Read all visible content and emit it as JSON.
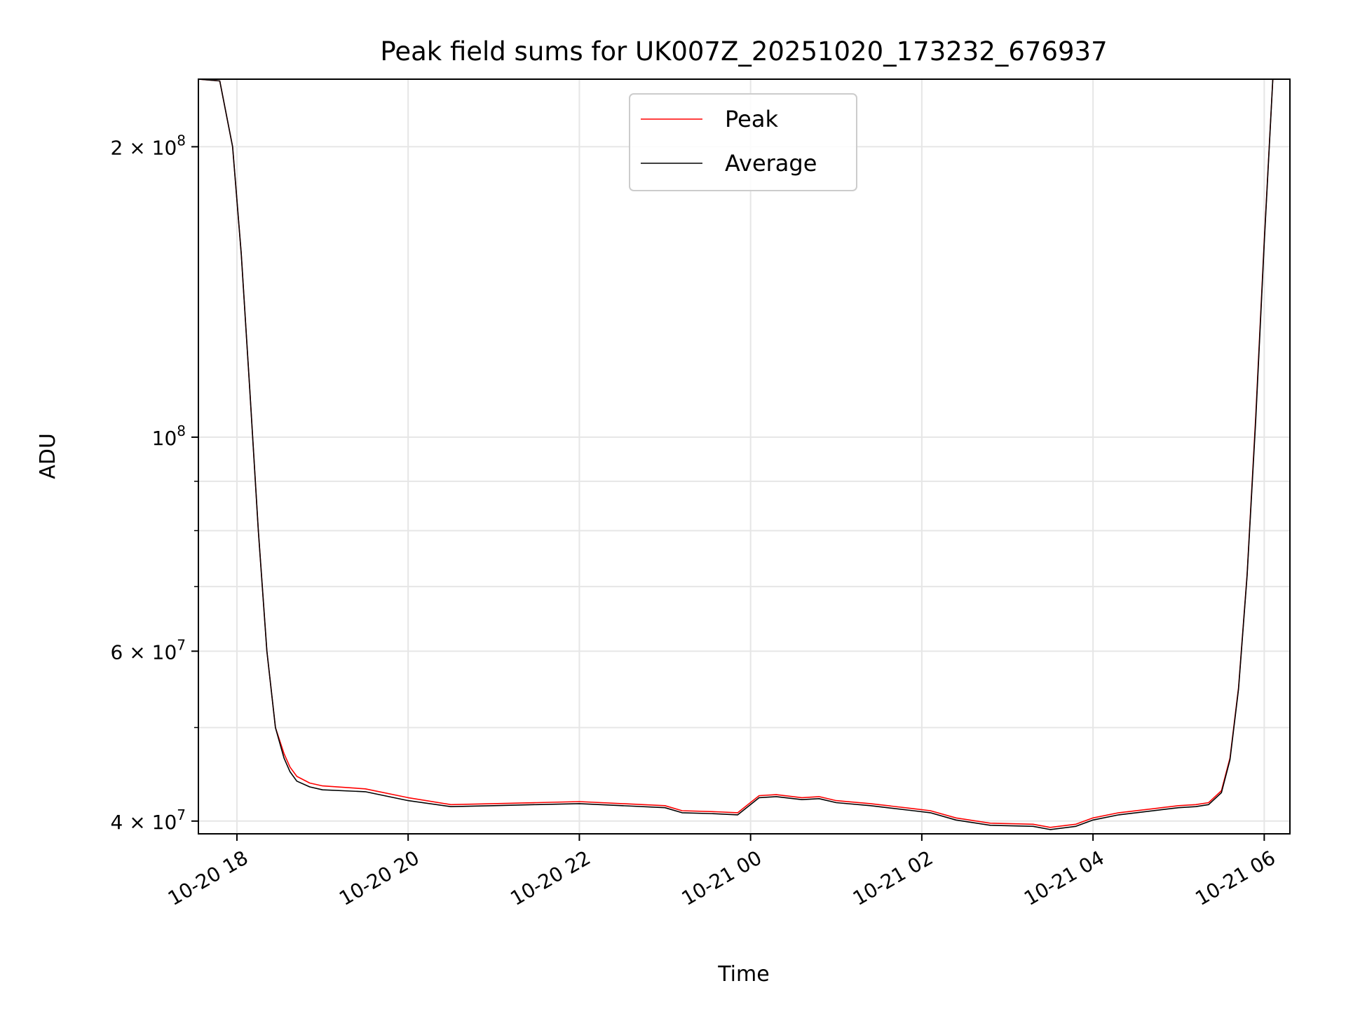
{
  "chart_data": {
    "type": "line",
    "title": "Peak field sums for UK007Z_20251020_173232_676937",
    "xlabel": "Time",
    "ylabel": "ADU",
    "yscale": "log",
    "grid": true,
    "legend_position": "upper-center",
    "xlim": [
      17.55,
      30.3
    ],
    "ylim": [
      38800000,
      235000000
    ],
    "x_ticks": [
      {
        "value": 18,
        "label": "10-20 18"
      },
      {
        "value": 20,
        "label": "10-20 20"
      },
      {
        "value": 22,
        "label": "10-20 22"
      },
      {
        "value": 24,
        "label": "10-21 00"
      },
      {
        "value": 26,
        "label": "10-21 02"
      },
      {
        "value": 28,
        "label": "10-21 04"
      },
      {
        "value": 30,
        "label": "10-21 06"
      }
    ],
    "y_major_ticks": [
      {
        "value": 40000000,
        "base": "4 × 10",
        "exp": "7"
      },
      {
        "value": 60000000,
        "base": "6 × 10",
        "exp": "7"
      },
      {
        "value": 100000000,
        "base": "10",
        "exp": "8"
      },
      {
        "value": 200000000,
        "base": "2 × 10",
        "exp": "8"
      }
    ],
    "y_minor_ticks": [
      50000000,
      70000000,
      80000000,
      90000000
    ],
    "series": [
      {
        "name": "Peak",
        "color": "#ff0000",
        "x": [
          17.55,
          17.8,
          17.95,
          18.05,
          18.15,
          18.25,
          18.35,
          18.45,
          18.55,
          18.62,
          18.7,
          18.85,
          19.0,
          19.5,
          20.0,
          20.5,
          21.0,
          21.5,
          22.0,
          22.5,
          23.0,
          23.2,
          23.6,
          23.85,
          24.1,
          24.3,
          24.6,
          24.8,
          25.0,
          25.4,
          25.9,
          26.1,
          26.4,
          26.8,
          27.3,
          27.5,
          27.8,
          28.0,
          28.3,
          28.8,
          29.0,
          29.2,
          29.35,
          29.5,
          29.6,
          29.7,
          29.8,
          29.9,
          30.0,
          30.1
        ],
        "values": [
          235000000,
          234000000,
          200000000,
          155000000,
          112000000,
          80000000,
          60000000,
          50000000,
          47000000,
          45500000,
          44500000,
          43800000,
          43500000,
          43200000,
          42300000,
          41600000,
          41700000,
          41800000,
          41900000,
          41700000,
          41500000,
          41000000,
          40900000,
          40800000,
          42500000,
          42600000,
          42300000,
          42400000,
          42000000,
          41700000,
          41200000,
          41000000,
          40300000,
          39800000,
          39700000,
          39400000,
          39700000,
          40300000,
          40800000,
          41300000,
          41500000,
          41600000,
          41800000,
          43000000,
          46500000,
          55000000,
          72000000,
          105000000,
          160000000,
          235000000
        ]
      },
      {
        "name": "Average",
        "color": "#000000",
        "x": [
          17.55,
          17.8,
          17.95,
          18.05,
          18.15,
          18.25,
          18.35,
          18.45,
          18.55,
          18.62,
          18.7,
          18.85,
          19.0,
          19.5,
          20.0,
          20.5,
          21.0,
          21.5,
          22.0,
          22.5,
          23.0,
          23.2,
          23.6,
          23.85,
          24.1,
          24.3,
          24.6,
          24.8,
          25.0,
          25.4,
          25.9,
          26.1,
          26.4,
          26.8,
          27.3,
          27.5,
          27.8,
          28.0,
          28.3,
          28.8,
          29.0,
          29.2,
          29.35,
          29.5,
          29.6,
          29.7,
          29.8,
          29.9,
          30.0,
          30.1
        ],
        "values": [
          235000000,
          234000000,
          200000000,
          155000000,
          112000000,
          80000000,
          60000000,
          50000000,
          46500000,
          45000000,
          44000000,
          43400000,
          43100000,
          42900000,
          42000000,
          41400000,
          41500000,
          41600000,
          41700000,
          41500000,
          41300000,
          40800000,
          40700000,
          40600000,
          42300000,
          42400000,
          42100000,
          42200000,
          41800000,
          41500000,
          41000000,
          40800000,
          40100000,
          39600000,
          39500000,
          39200000,
          39500000,
          40100000,
          40600000,
          41100000,
          41300000,
          41400000,
          41600000,
          42800000,
          46300000,
          54800000,
          71800000,
          104000000,
          159000000,
          235000000
        ]
      }
    ]
  }
}
